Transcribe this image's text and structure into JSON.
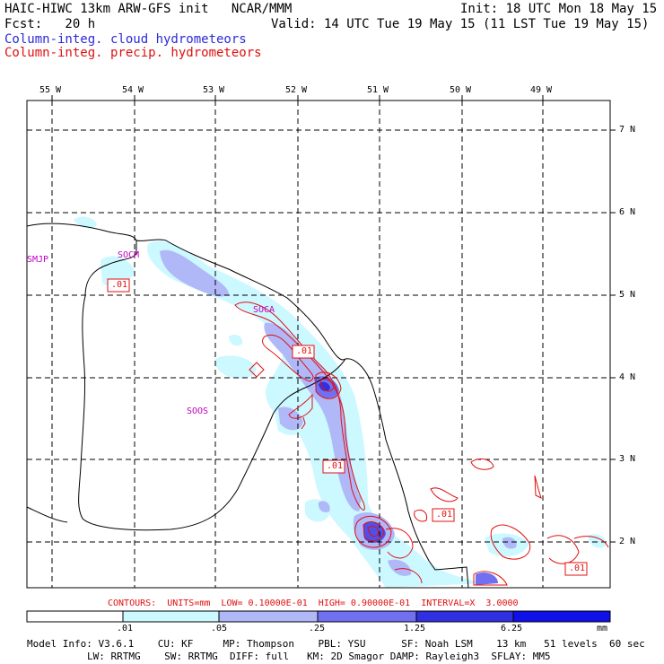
{
  "header": {
    "line1_left": "HAIC-HIWC 13km ARW-GFS init   NCAR/MMM",
    "line1_right": "Init: 18 UTC Mon 18 May 15",
    "line2_left": "Fcst:   20 h",
    "line2_right": "Valid: 14 UTC Tue 19 May 15 (11 LST Tue 19 May 15)",
    "legend_cloud": "Column-integ. cloud hydrometeors",
    "legend_precip": "Column-integ. precip. hydrometeors"
  },
  "map": {
    "longitudes": [
      "55 W",
      "54 W",
      "53 W",
      "52 W",
      "51 W",
      "50 W",
      "49 W"
    ],
    "latitudes": [
      "7 N",
      "6 N",
      "5 N",
      "4 N",
      "3 N",
      "2 N"
    ],
    "stations": [
      "SMJP",
      "SOCM",
      "SOCA",
      "SOOS"
    ],
    "contour_labels": [
      ".01",
      ".01",
      ".01",
      ".01",
      ".01"
    ]
  },
  "contours_note": "CONTOURS:  UNITS=mm  LOW= 0.10000E-01  HIGH= 0.90000E-01  INTERVAL=X  3.0000",
  "colorbar": {
    "labels": [
      ".01",
      ".05",
      ".25",
      "1.25",
      "6.25",
      "mm"
    ],
    "colors": [
      "#ffffff",
      "#ccf8ff",
      "#b0b8f8",
      "#7070f0",
      "#3030e0",
      "#1010e8"
    ]
  },
  "footer": {
    "line1": "Model Info: V3.6.1    CU: KF     MP: Thompson    PBL: YSU      SF: Noah LSM    13 km   51 levels  60 sec",
    "line2": "LW: RRTMG    SW: RRTMG  DIFF: full   KM: 2D Smagor DAMP: Rayleigh3  SFLAY: MM5"
  }
}
